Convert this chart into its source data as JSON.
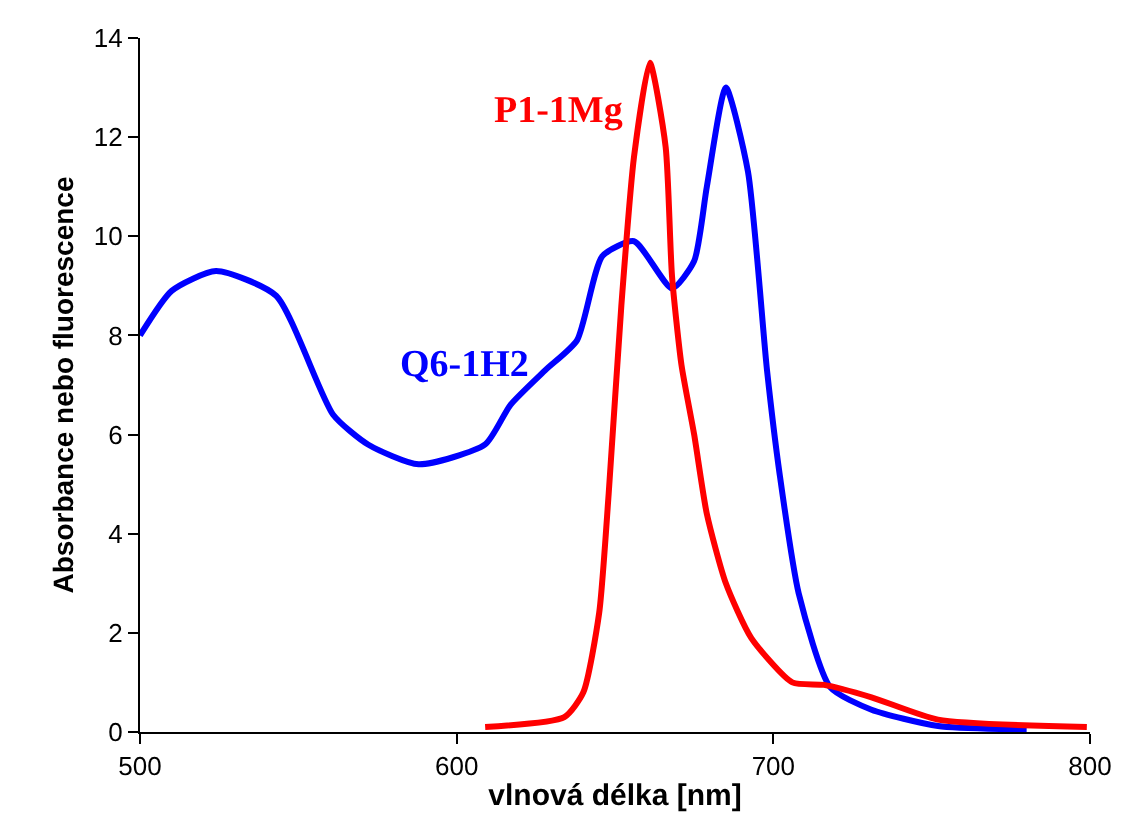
{
  "chart_data": {
    "type": "line",
    "xlabel": "vlnová délka [nm]",
    "ylabel": "Absorbance nebo fluorescence",
    "xlim": [
      500,
      800
    ],
    "xticks": [
      500,
      600,
      700,
      800
    ],
    "ylim": [
      0,
      14
    ],
    "yticks": [
      0,
      2,
      4,
      6,
      8,
      10,
      12,
      14
    ],
    "series": [
      {
        "name": "Q6-1H2",
        "color": "#0000ff",
        "x": [
          500,
          510,
          524,
          543,
          561,
          572,
          588,
          609,
          617,
          628,
          638,
          646,
          656,
          668,
          675,
          679,
          685,
          692,
          698,
          702,
          708,
          718,
          731,
          752,
          780
        ],
        "values": [
          8.0,
          8.9,
          9.3,
          8.8,
          6.4,
          5.8,
          5.4,
          5.8,
          6.6,
          7.3,
          7.9,
          9.6,
          9.9,
          8.95,
          9.5,
          11.0,
          13.0,
          11.3,
          7.3,
          5.2,
          2.8,
          0.9,
          0.45,
          0.12,
          0.05
        ]
      },
      {
        "name": "P1-1Mg",
        "color": "#ff0000",
        "x": [
          609,
          634,
          640,
          645,
          648,
          652,
          656,
          661,
          666,
          668,
          671,
          675,
          679,
          685,
          693,
          706,
          716,
          731,
          752,
          799
        ],
        "values": [
          0.1,
          0.3,
          0.8,
          2.4,
          4.8,
          8.6,
          11.6,
          13.5,
          11.8,
          9.2,
          7.4,
          6.0,
          4.4,
          3.0,
          1.9,
          1.0,
          0.95,
          0.7,
          0.25,
          0.1
        ]
      }
    ]
  }
}
